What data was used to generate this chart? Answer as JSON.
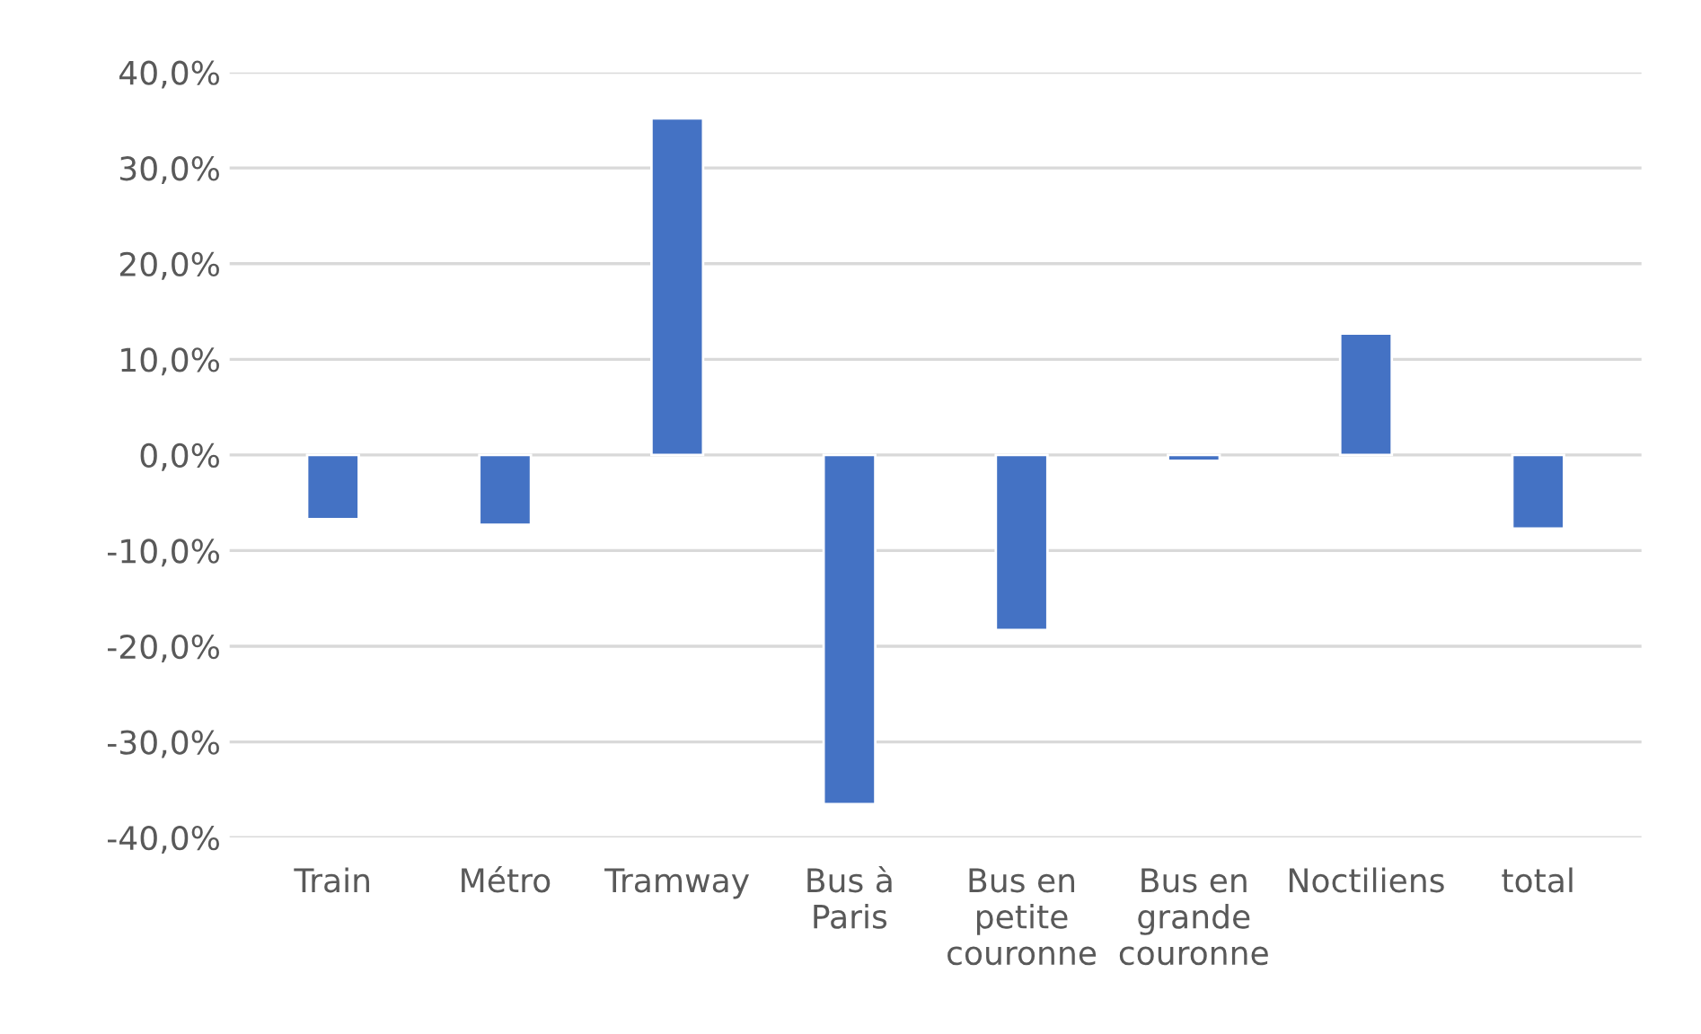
{
  "chart_data": {
    "type": "bar",
    "categories": [
      "Train",
      "Métro",
      "Tramway",
      "Bus à\nParis",
      "Bus en\npetite\ncouronne",
      "Bus en\ngrande\ncouronne",
      "Noctiliens",
      "total"
    ],
    "values": [
      -6.7,
      -7.3,
      35.2,
      -36.5,
      -18.3,
      -0.6,
      12.7,
      -7.7
    ],
    "color": "#4472c4",
    "ylim": [
      -40,
      40
    ],
    "yticks": [
      {
        "value": -40,
        "label": "-40,0%"
      },
      {
        "value": -30,
        "label": "-30,0%"
      },
      {
        "value": -20,
        "label": "-20,0%"
      },
      {
        "value": -10,
        "label": "-10,0%"
      },
      {
        "value": 0,
        "label": "0,0%"
      },
      {
        "value": 10,
        "label": "10,0%"
      },
      {
        "value": 20,
        "label": "20,0%"
      },
      {
        "value": 30,
        "label": "30,0%"
      },
      {
        "value": 40,
        "label": "40,0%"
      }
    ],
    "grid": "y"
  }
}
